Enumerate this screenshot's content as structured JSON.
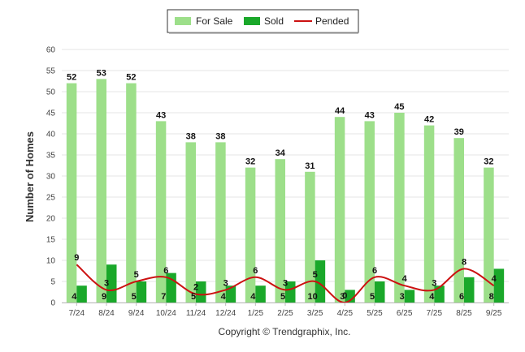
{
  "chart_data": {
    "type": "bar",
    "ylabel": "Number of Homes",
    "ylim": [
      0,
      60
    ],
    "yticks": [
      0,
      5,
      10,
      15,
      20,
      25,
      30,
      35,
      40,
      45,
      50,
      55,
      60
    ],
    "categories": [
      "7/24",
      "8/24",
      "9/24",
      "10/24",
      "11/24",
      "12/24",
      "1/25",
      "2/25",
      "3/25",
      "4/25",
      "5/25",
      "6/25",
      "7/25",
      "8/25",
      "9/25"
    ],
    "series": [
      {
        "name": "For Sale",
        "kind": "bar",
        "color": "#9ddf8a",
        "values": [
          52,
          53,
          52,
          43,
          38,
          38,
          32,
          34,
          31,
          44,
          43,
          45,
          42,
          39,
          32
        ]
      },
      {
        "name": "Sold",
        "kind": "bar",
        "color": "#1aa82a",
        "values": [
          4,
          9,
          5,
          7,
          5,
          4,
          4,
          5,
          10,
          3,
          5,
          3,
          4,
          6,
          8
        ]
      },
      {
        "name": "Pended",
        "kind": "line",
        "color": "#cc1111",
        "values": [
          9,
          3,
          5,
          6,
          2,
          3,
          6,
          3,
          5,
          0,
          6,
          4,
          3,
          8,
          4
        ]
      }
    ],
    "grid": true,
    "legend_position": "top-center",
    "copyright": "Copyright © Trendgraphix, Inc."
  }
}
